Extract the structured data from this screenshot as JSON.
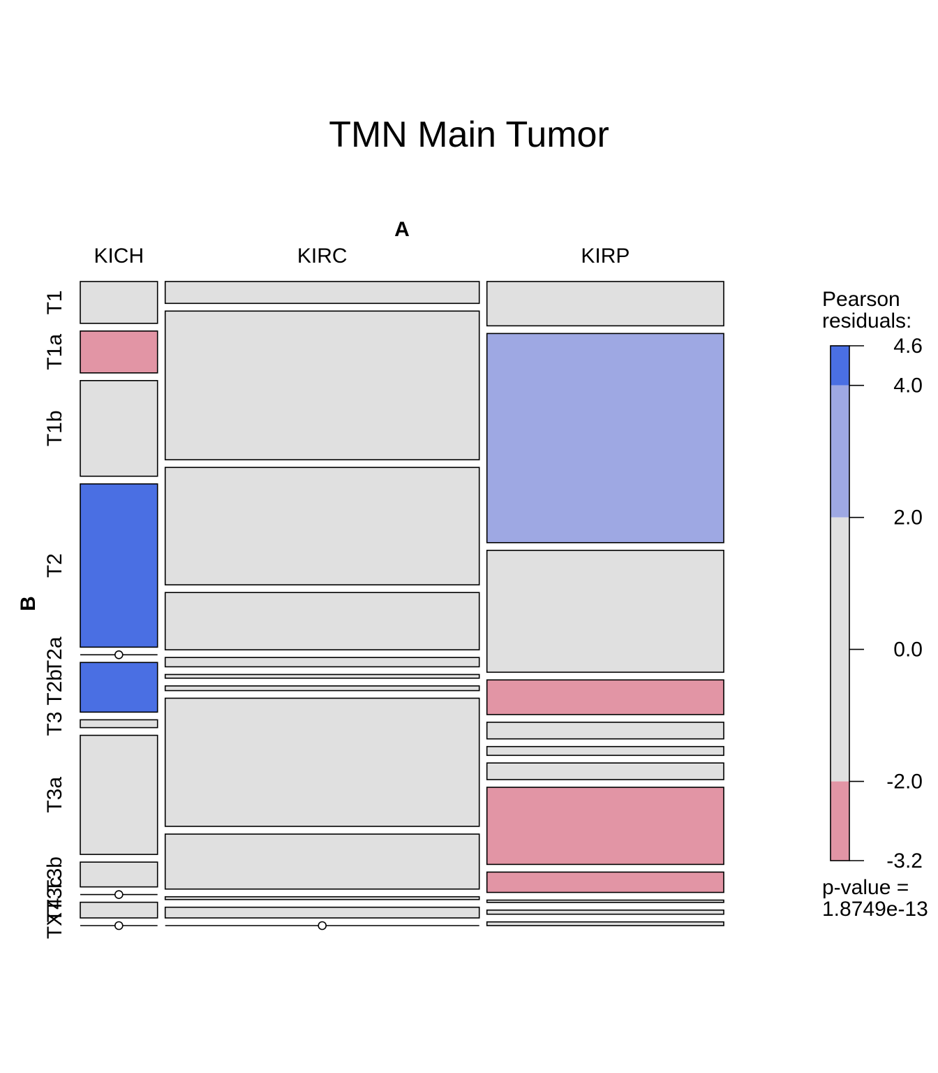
{
  "chart_data": {
    "type": "mosaic",
    "title": "TMN Main Tumor",
    "xlabel": "A",
    "ylabel": "B",
    "x_categories": [
      "KICH",
      "KIRC",
      "KIRP"
    ],
    "y_categories": [
      "T1",
      "T1a",
      "T1b",
      "T2",
      "T2a",
      "T2b",
      "T3",
      "T3a",
      "T3b",
      "T3c",
      "T4",
      "TX"
    ],
    "column_widths": [
      0.123,
      0.5,
      0.377
    ],
    "cells": {
      "KICH": [
        {
          "stage": "T1",
          "share": 0.091,
          "fill": "neutral"
        },
        {
          "stage": "T1a",
          "share": 0.091,
          "fill": "neg"
        },
        {
          "stage": "T1b",
          "share": 0.208,
          "fill": "neutral"
        },
        {
          "stage": "T2",
          "share": 0.355,
          "fill": "pos_strong"
        },
        {
          "stage": "T2a",
          "share": 0.0,
          "fill": "neutral"
        },
        {
          "stage": "T2b",
          "share": 0.108,
          "fill": "pos_strong"
        },
        {
          "stage": "T3",
          "share": 0.017,
          "fill": "neutral"
        },
        {
          "stage": "T3a",
          "share": 0.259,
          "fill": "neutral"
        },
        {
          "stage": "T3b",
          "share": 0.054,
          "fill": "neutral"
        },
        {
          "stage": "T3c",
          "share": 0.0,
          "fill": "neutral"
        },
        {
          "stage": "T4",
          "share": 0.034,
          "fill": "neutral"
        },
        {
          "stage": "TX",
          "share": 0.0,
          "fill": "neutral"
        }
      ],
      "KIRC": [
        {
          "stage": "T1",
          "share": 0.047,
          "fill": "neutral"
        },
        {
          "stage": "T1a",
          "share": 0.319,
          "fill": "neutral"
        },
        {
          "stage": "T1b",
          "share": 0.252,
          "fill": "neutral"
        },
        {
          "stage": "T2",
          "share": 0.123,
          "fill": "neutral"
        },
        {
          "stage": "T2a",
          "share": 0.02,
          "fill": "neutral"
        },
        {
          "stage": "T2b",
          "share": 0.008,
          "fill": "neutral"
        },
        {
          "stage": "T3",
          "share": 0.01,
          "fill": "neutral"
        },
        {
          "stage": "T3a",
          "share": 0.275,
          "fill": "neutral"
        },
        {
          "stage": "T3b",
          "share": 0.118,
          "fill": "neutral"
        },
        {
          "stage": "T3c",
          "share": 0.006,
          "fill": "neutral"
        },
        {
          "stage": "T4",
          "share": 0.023,
          "fill": "neutral"
        },
        {
          "stage": "TX",
          "share": 0.0,
          "fill": "neutral"
        }
      ],
      "KIRP": [
        {
          "stage": "T1",
          "share": 0.096,
          "fill": "neutral"
        },
        {
          "stage": "T1a",
          "share": 0.453,
          "fill": "pos_weak"
        },
        {
          "stage": "T1b",
          "share": 0.264,
          "fill": "neutral"
        },
        {
          "stage": "T2",
          "share": 0.075,
          "fill": "neg"
        },
        {
          "stage": "T2a",
          "share": 0.036,
          "fill": "neutral"
        },
        {
          "stage": "T2b",
          "share": 0.019,
          "fill": "neutral"
        },
        {
          "stage": "T3",
          "share": 0.036,
          "fill": "neutral"
        },
        {
          "stage": "T3a",
          "share": 0.167,
          "fill": "neg"
        },
        {
          "stage": "T3b",
          "share": 0.044,
          "fill": "neg"
        },
        {
          "stage": "T3c",
          "share": 0.005,
          "fill": "neutral"
        },
        {
          "stage": "T4",
          "share": 0.009,
          "fill": "neutral"
        },
        {
          "stage": "TX",
          "share": 0.008,
          "fill": "neutral"
        }
      ]
    },
    "legend": {
      "title_line1": "Pearson",
      "title_line2": "residuals:",
      "range": [
        -3.2,
        4.6
      ],
      "ticks": [
        "4.6",
        "4.0",
        "2.0",
        "0.0",
        "-2.0",
        "-3.2"
      ],
      "tick_values": [
        4.6,
        4.0,
        2.0,
        0.0,
        -2.0,
        -3.2
      ],
      "pvalue_line1": "p-value =",
      "pvalue_line2": "1.8749e-13",
      "placement": "right"
    },
    "colors": {
      "neutral": "#e0e0e0",
      "neg": "#e295a5",
      "pos_weak": "#9ea8e3",
      "pos_strong": "#4a6fe3"
    }
  }
}
